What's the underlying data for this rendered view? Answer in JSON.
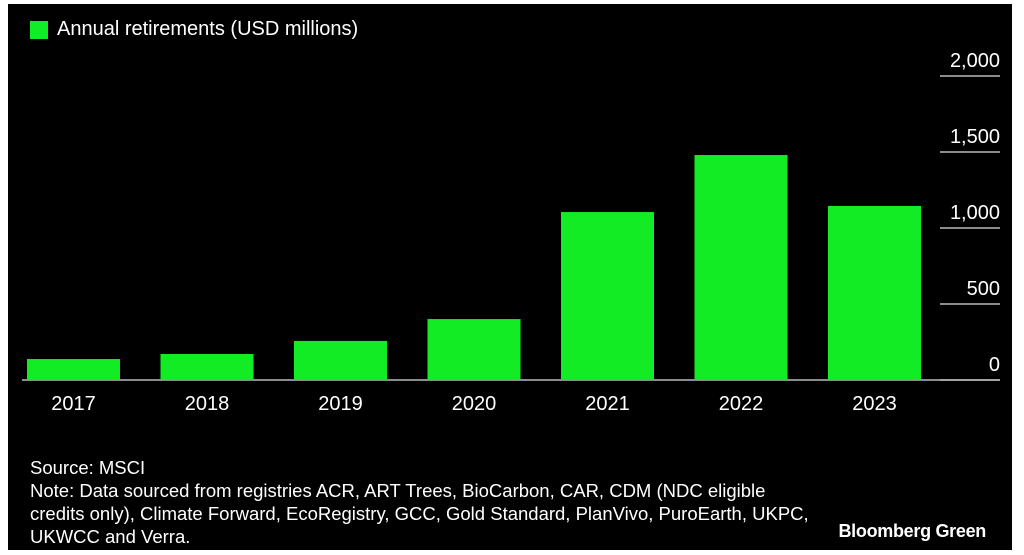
{
  "chart_data": {
    "type": "bar",
    "categories": [
      "2017",
      "2018",
      "2019",
      "2020",
      "2021",
      "2022",
      "2023"
    ],
    "series": [
      {
        "name": "Annual retirements (USD millions)",
        "values": [
          138,
          171,
          257,
          401,
          1105,
          1480,
          1145
        ],
        "color": "#12ec24"
      }
    ],
    "ylim": [
      0,
      2000
    ],
    "yticks": [
      0,
      500,
      1000,
      1500,
      2000
    ],
    "ytick_labels": [
      "0",
      "500",
      "1,000",
      "1,500",
      "2,000"
    ],
    "y_axis_side": "right",
    "legend_position": "top-left",
    "grid": false
  },
  "footer": {
    "source": "Source: MSCI",
    "note": "Note: Data sourced from registries ACR, ART Trees, BioCarbon, CAR, CDM (NDC eligible credits only), Climate Forward, EcoRegistry, GCC, Gold Standard, PlanVivo, PuroEarth, UKPC, UKWCC and Verra.",
    "brand": "Bloomberg Green"
  },
  "colors": {
    "background": "#000000",
    "bar": "#12ec24",
    "text": "#ffffff",
    "axis": "#bbbbbb"
  }
}
